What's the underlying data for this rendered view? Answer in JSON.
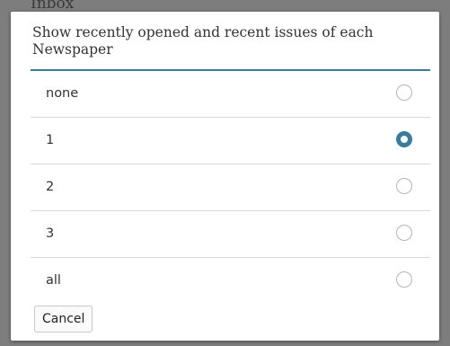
{
  "background": {
    "title": "Inbox"
  },
  "dialog": {
    "title": "Show recently opened and recent issues of each Newspaper",
    "options": [
      {
        "label": "none",
        "selected": false
      },
      {
        "label": "1",
        "selected": true
      },
      {
        "label": "2",
        "selected": false
      },
      {
        "label": "3",
        "selected": false
      },
      {
        "label": "all",
        "selected": false
      }
    ],
    "cancel": "Cancel"
  }
}
